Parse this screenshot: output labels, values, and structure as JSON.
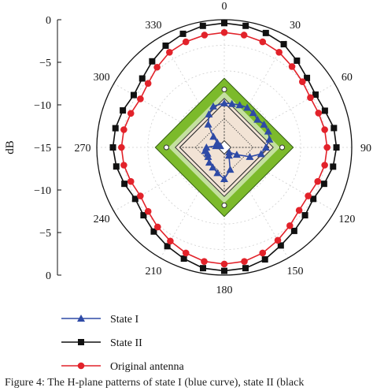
{
  "caption": "Figure 4: The H-plane patterns of state I (blue curve), state II (black",
  "chart_data": {
    "type": "polar-line",
    "angle_unit": "deg",
    "angle_ticks": [
      0,
      30,
      60,
      90,
      120,
      150,
      180,
      210,
      240,
      270,
      300,
      330
    ],
    "angle_tick_labels": [
      "0",
      "30",
      "60",
      "90",
      "120",
      "150",
      "180",
      "210",
      "240",
      "270",
      "300",
      "330"
    ],
    "r_axis_label": "dB",
    "r_range": [
      -15,
      0
    ],
    "r_ticks_top": [
      "0",
      "−5",
      "−10",
      "−15"
    ],
    "r_ticks_bottom": [
      "−10",
      "−5",
      "0"
    ],
    "legend_position": "bottom-left",
    "colors": {
      "state1": "#2e4aa6",
      "state2": "#111111",
      "original": "#e2222a",
      "grid": "#cfcfcf",
      "inset_green": "#7cba2b",
      "inset_board": "#f2e3d5"
    },
    "series": [
      {
        "name": "State I",
        "marker": "triangle",
        "color": "#2e4aa6",
        "points": [
          {
            "theta": 0,
            "r": -9.8
          },
          {
            "theta": 10,
            "r": -9.8
          },
          {
            "theta": 20,
            "r": -9.7
          },
          {
            "theta": 30,
            "r": -9.6
          },
          {
            "theta": 40,
            "r": -9.7
          },
          {
            "theta": 50,
            "r": -9.9
          },
          {
            "theta": 60,
            "r": -9.6
          },
          {
            "theta": 70,
            "r": -9.5
          },
          {
            "theta": 80,
            "r": -9.6
          },
          {
            "theta": 90,
            "r": -10.1
          },
          {
            "theta": 100,
            "r": -10.6
          },
          {
            "theta": 110,
            "r": -11.8
          },
          {
            "theta": 120,
            "r": -13.3
          },
          {
            "theta": 135,
            "r": -14.2
          },
          {
            "theta": 150,
            "r": -13.9
          },
          {
            "theta": 165,
            "r": -12.3
          },
          {
            "theta": 180,
            "r": -11.3
          },
          {
            "theta": 195,
            "r": -11.9
          },
          {
            "theta": 210,
            "r": -12.3
          },
          {
            "theta": 225,
            "r": -12.5
          },
          {
            "theta": 240,
            "r": -12.8
          },
          {
            "theta": 250,
            "r": -12.9
          },
          {
            "theta": 260,
            "r": -12.7
          },
          {
            "theta": 270,
            "r": -12.9
          },
          {
            "theta": 280,
            "r": -14.0
          },
          {
            "theta": 290,
            "r": -14.5
          },
          {
            "theta": 305,
            "r": -14.0
          },
          {
            "theta": 315,
            "r": -13.2
          },
          {
            "theta": 325,
            "r": -11.7
          },
          {
            "theta": 335,
            "r": -10.7
          },
          {
            "theta": 345,
            "r": -10.0
          }
        ]
      },
      {
        "name": "State II",
        "marker": "square",
        "color": "#111111",
        "points": [
          {
            "theta": 0,
            "r": -0.4
          },
          {
            "theta": 10,
            "r": -0.5
          },
          {
            "theta": 20,
            "r": -0.7
          },
          {
            "theta": 30,
            "r": -1.0
          },
          {
            "theta": 40,
            "r": -1.7
          },
          {
            "theta": 50,
            "r": -2.3
          },
          {
            "theta": 60,
            "r": -2.6
          },
          {
            "theta": 70,
            "r": -2.4
          },
          {
            "theta": 80,
            "r": -1.9
          },
          {
            "theta": 90,
            "r": -1.8
          },
          {
            "theta": 100,
            "r": -2.0
          },
          {
            "theta": 110,
            "r": -2.5
          },
          {
            "theta": 120,
            "r": -2.9
          },
          {
            "theta": 130,
            "r": -2.6
          },
          {
            "theta": 140,
            "r": -2.2
          },
          {
            "theta": 150,
            "r": -1.7
          },
          {
            "theta": 160,
            "r": -1.0
          },
          {
            "theta": 170,
            "r": -0.6
          },
          {
            "theta": 180,
            "r": -0.5
          },
          {
            "theta": 190,
            "r": -0.6
          },
          {
            "theta": 200,
            "r": -1.1
          },
          {
            "theta": 210,
            "r": -1.6
          },
          {
            "theta": 220,
            "r": -2.1
          },
          {
            "theta": 230,
            "r": -2.6
          },
          {
            "theta": 240,
            "r": -2.9
          },
          {
            "theta": 250,
            "r": -2.5
          },
          {
            "theta": 260,
            "r": -2.1
          },
          {
            "theta": 270,
            "r": -1.9
          },
          {
            "theta": 280,
            "r": -2.0
          },
          {
            "theta": 290,
            "r": -2.3
          },
          {
            "theta": 300,
            "r": -2.7
          },
          {
            "theta": 310,
            "r": -2.4
          },
          {
            "theta": 320,
            "r": -1.8
          },
          {
            "theta": 330,
            "r": -1.2
          },
          {
            "theta": 340,
            "r": -0.8
          },
          {
            "theta": 350,
            "r": -0.5
          }
        ]
      },
      {
        "name": "Original antenna",
        "marker": "circle",
        "color": "#e2222a",
        "points": [
          {
            "theta": 0,
            "r": -1.5
          },
          {
            "theta": 10,
            "r": -1.6
          },
          {
            "theta": 20,
            "r": -1.8
          },
          {
            "theta": 30,
            "r": -2.1
          },
          {
            "theta": 40,
            "r": -2.6
          },
          {
            "theta": 50,
            "r": -3.0
          },
          {
            "theta": 60,
            "r": -3.3
          },
          {
            "theta": 70,
            "r": -3.2
          },
          {
            "theta": 80,
            "r": -3.0
          },
          {
            "theta": 90,
            "r": -2.9
          },
          {
            "theta": 100,
            "r": -3.0
          },
          {
            "theta": 110,
            "r": -3.3
          },
          {
            "theta": 120,
            "r": -3.6
          },
          {
            "theta": 130,
            "r": -3.5
          },
          {
            "theta": 140,
            "r": -3.0
          },
          {
            "theta": 150,
            "r": -2.4
          },
          {
            "theta": 160,
            "r": -1.8
          },
          {
            "theta": 170,
            "r": -1.4
          },
          {
            "theta": 180,
            "r": -1.3
          },
          {
            "theta": 190,
            "r": -1.4
          },
          {
            "theta": 200,
            "r": -1.8
          },
          {
            "theta": 210,
            "r": -2.3
          },
          {
            "theta": 220,
            "r": -2.8
          },
          {
            "theta": 230,
            "r": -3.3
          },
          {
            "theta": 240,
            "r": -3.6
          },
          {
            "theta": 250,
            "r": -3.3
          },
          {
            "theta": 260,
            "r": -3.0
          },
          {
            "theta": 270,
            "r": -2.9
          },
          {
            "theta": 280,
            "r": -3.0
          },
          {
            "theta": 290,
            "r": -3.3
          },
          {
            "theta": 300,
            "r": -3.6
          },
          {
            "theta": 310,
            "r": -3.3
          },
          {
            "theta": 320,
            "r": -2.7
          },
          {
            "theta": 330,
            "r": -2.1
          },
          {
            "theta": 340,
            "r": -1.8
          },
          {
            "theta": 350,
            "r": -1.6
          }
        ]
      }
    ]
  }
}
